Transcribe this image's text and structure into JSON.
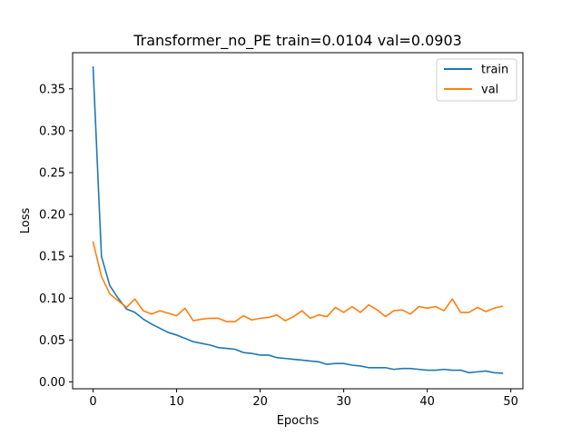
{
  "chart_data": {
    "type": "line",
    "title": "Transformer_no_PE train=0.0104 val=0.0903",
    "xlabel": "Epochs",
    "ylabel": "Loss",
    "xlim": [
      -2.45,
      51.45
    ],
    "ylim": [
      -0.0082,
      0.3932
    ],
    "xticks": [
      0,
      10,
      20,
      30,
      40,
      50
    ],
    "yticks": [
      0.0,
      0.05,
      0.1,
      0.15,
      0.2,
      0.25,
      0.3,
      0.35
    ],
    "ytick_labels": [
      "0.00",
      "0.05",
      "0.10",
      "0.15",
      "0.20",
      "0.25",
      "0.30",
      "0.35"
    ],
    "grid": false,
    "legend_position": "top-right",
    "x": [
      0,
      1,
      2,
      3,
      4,
      5,
      6,
      7,
      8,
      9,
      10,
      11,
      12,
      13,
      14,
      15,
      16,
      17,
      18,
      19,
      20,
      21,
      22,
      23,
      24,
      25,
      26,
      27,
      28,
      29,
      30,
      31,
      32,
      33,
      34,
      35,
      36,
      37,
      38,
      39,
      40,
      41,
      42,
      43,
      44,
      45,
      46,
      47,
      48,
      49
    ],
    "series": [
      {
        "name": "train",
        "color": "#1f77b4",
        "values": [
          0.376,
          0.15,
          0.115,
          0.1,
          0.087,
          0.083,
          0.075,
          0.069,
          0.064,
          0.059,
          0.056,
          0.052,
          0.048,
          0.046,
          0.044,
          0.041,
          0.04,
          0.039,
          0.035,
          0.034,
          0.032,
          0.032,
          0.029,
          0.028,
          0.027,
          0.026,
          0.025,
          0.024,
          0.021,
          0.022,
          0.022,
          0.02,
          0.019,
          0.017,
          0.017,
          0.017,
          0.015,
          0.016,
          0.016,
          0.015,
          0.014,
          0.014,
          0.015,
          0.014,
          0.014,
          0.011,
          0.012,
          0.013,
          0.011,
          0.0104
        ]
      },
      {
        "name": "val",
        "color": "#ff7f0e",
        "values": [
          0.167,
          0.126,
          0.105,
          0.097,
          0.089,
          0.099,
          0.085,
          0.081,
          0.085,
          0.082,
          0.079,
          0.088,
          0.073,
          0.075,
          0.076,
          0.076,
          0.072,
          0.072,
          0.079,
          0.074,
          0.076,
          0.077,
          0.08,
          0.073,
          0.078,
          0.085,
          0.076,
          0.08,
          0.078,
          0.089,
          0.083,
          0.09,
          0.083,
          0.092,
          0.086,
          0.078,
          0.085,
          0.086,
          0.081,
          0.09,
          0.088,
          0.09,
          0.085,
          0.099,
          0.083,
          0.083,
          0.089,
          0.084,
          0.088,
          0.0903
        ]
      }
    ]
  }
}
